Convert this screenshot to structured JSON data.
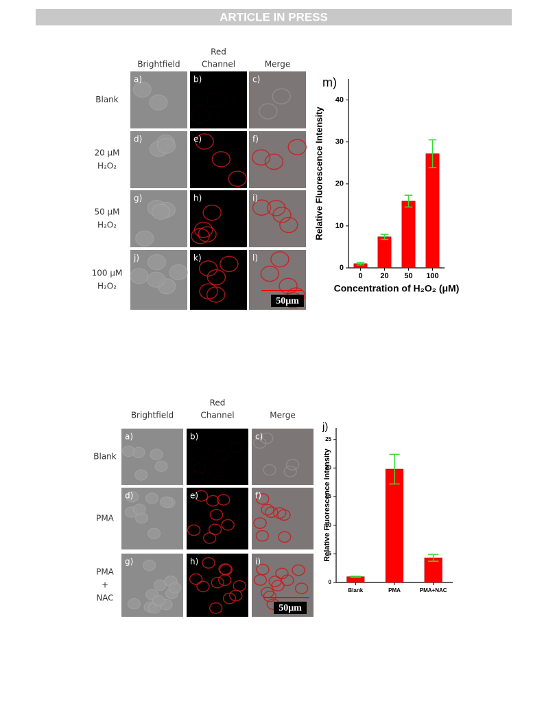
{
  "header": {
    "title": "ARTICLE IN PRESS"
  },
  "figure_1": {
    "column_headers": [
      [
        "Brightfield"
      ],
      [
        "Red",
        "Channel"
      ],
      [
        "Merge"
      ]
    ],
    "row_labels": [
      [
        "Blank"
      ],
      [
        "20 μM",
        "H₂O₂"
      ],
      [
        "50 μM",
        "H₂O₂"
      ],
      [
        "100 μM",
        "H₂O₂"
      ]
    ],
    "panel_labels": [
      "a)",
      "b)",
      "c)",
      "d)",
      "e)",
      "f)",
      "g)",
      "h)",
      "i)",
      "j)",
      "k)",
      "l)"
    ],
    "scale_bar": "50μm"
  },
  "figure_2": {
    "column_headers": [
      [
        "Brightfield"
      ],
      [
        "Red",
        "Channel"
      ],
      [
        "Merge"
      ]
    ],
    "row_labels": [
      [
        "Blank"
      ],
      [
        "PMA"
      ],
      [
        "PMA",
        "+",
        "NAC"
      ]
    ],
    "panel_labels": [
      "a)",
      "b)",
      "c)",
      "d)",
      "e)",
      "f)",
      "g)",
      "h)",
      "i)"
    ],
    "scale_bar": "50μm"
  },
  "chart_data": [
    {
      "type": "bar",
      "panel_label": "m)",
      "ylabel": "Relative Fluorescence Intensity",
      "xlabel": "Concentration of H₂O₂ (μM)",
      "categories": [
        "0",
        "20",
        "50",
        "100"
      ],
      "values": [
        1.0,
        7.4,
        15.9,
        27.2
      ],
      "errors": [
        0.3,
        0.6,
        1.4,
        3.3
      ],
      "color": "#ff0000",
      "error_color": "#33dd33",
      "ylim": [
        0,
        45
      ],
      "yticks": [
        0,
        10,
        20,
        30,
        40
      ]
    },
    {
      "type": "bar",
      "panel_label": "j)",
      "ylabel": "Relative Fluorescence Intensity",
      "categories": [
        "Blank",
        "PMA",
        "PMA+NAC"
      ],
      "values": [
        1.0,
        19.8,
        4.3
      ],
      "errors": [
        0.1,
        2.6,
        0.6
      ],
      "color": "#ff0000",
      "error_color": "#33dd33",
      "ylim": [
        0,
        27
      ],
      "yticks": [
        0,
        5,
        10,
        15,
        20,
        25
      ]
    }
  ]
}
